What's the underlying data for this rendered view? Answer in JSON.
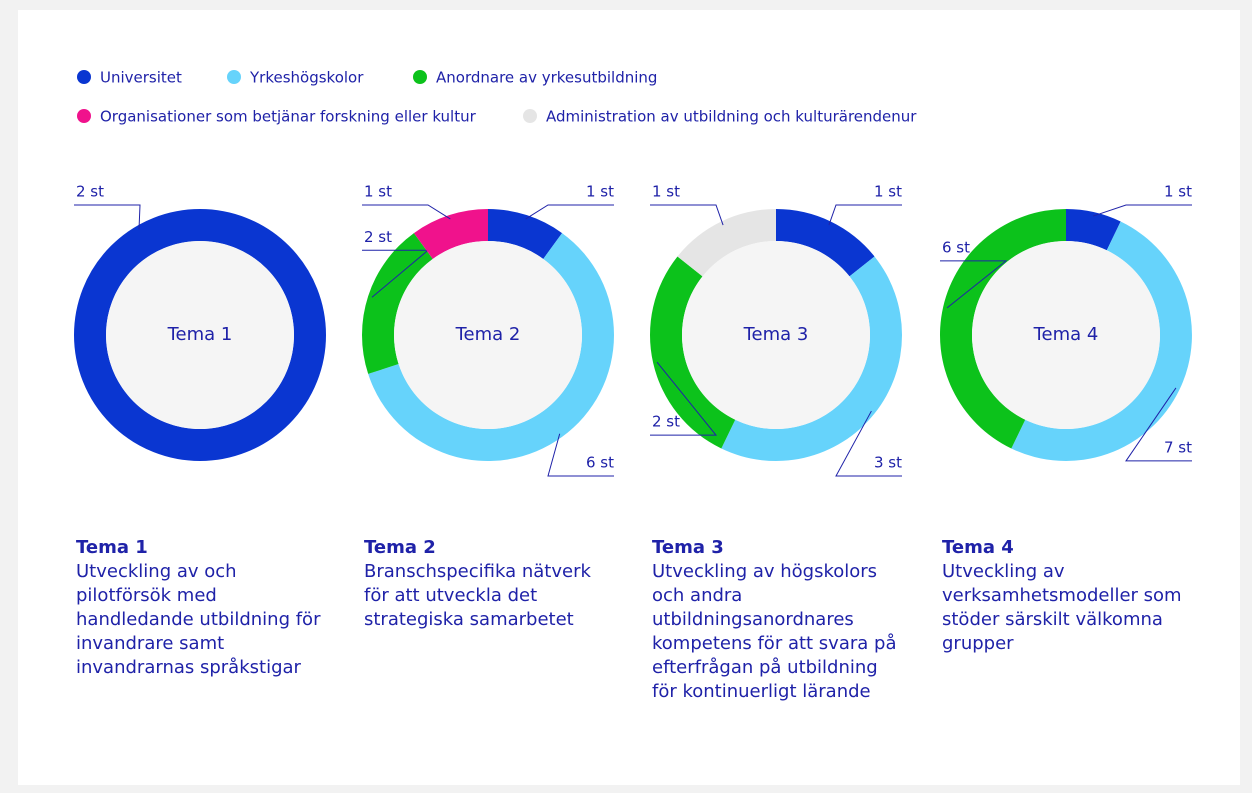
{
  "legend": [
    {
      "name": "Universitet",
      "color": "#0a36d1"
    },
    {
      "name": "Yrkeshögskolor",
      "color": "#66d3fb"
    },
    {
      "name": "Anordnare av yrkesutbildning",
      "color": "#0cc21b"
    },
    {
      "name": "Organisationer som betjänar forskning eller kultur",
      "color": "#f0128c"
    },
    {
      "name": "Administration av utbildning och kulturärendenur",
      "color": "#e5e5e5"
    }
  ],
  "chart_data": [
    {
      "type": "donut",
      "title": "Tema 1",
      "description": "Utveckling av och pilotförsök med handledande utbildning för invandrare samt invandrarnas språkstigar",
      "values": [
        2,
        null,
        null,
        null,
        null
      ],
      "value_labels": [
        "2 st",
        null,
        null,
        null,
        null
      ]
    },
    {
      "type": "donut",
      "title": "Tema 2",
      "description": "Branschspecifika nätverk för att utveckla det strategiska samarbetet",
      "values": [
        1,
        6,
        2,
        1,
        null
      ],
      "value_labels": [
        "1 st",
        "6 st",
        "2 st",
        "1 st",
        null
      ]
    },
    {
      "type": "donut",
      "title": "Tema 3",
      "description": "Utveckling av högskolors och andra utbildningsanordnares kompetens för att svara på efterfrågan på utbildning för kontinuerligt lärande",
      "values": [
        1,
        3,
        2,
        null,
        1
      ],
      "value_labels": [
        "1 st",
        "3 st",
        "2 st",
        null,
        "1 st"
      ]
    },
    {
      "type": "donut",
      "title": "Tema 4",
      "description": "Utveckling av verksamhetsmodeller som stöder särskilt välkomna grupper",
      "values": [
        1,
        7,
        6,
        null,
        null
      ],
      "value_labels": [
        "1 st",
        "7 st",
        "6 st",
        null,
        null
      ]
    }
  ]
}
